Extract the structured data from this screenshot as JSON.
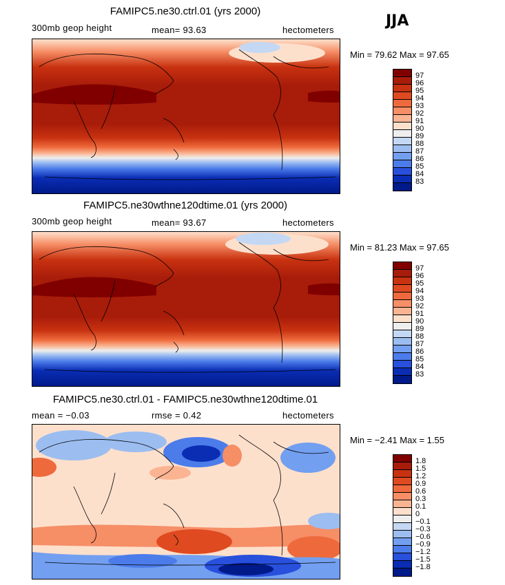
{
  "season": "JJA",
  "panels": [
    {
      "title": "FAMIPC5.ne30.ctrl.01 (yrs 2000)",
      "left": "300mb geop height",
      "center": "mean=   93.63",
      "units": "hectometers",
      "minmax": "Min =   79.62  Max =   97.65",
      "colorbar_labels": [
        "97",
        "96",
        "95",
        "94",
        "93",
        "92",
        "91",
        "90",
        "89",
        "88",
        "87",
        "86",
        "85",
        "84",
        "83"
      ]
    },
    {
      "title": "FAMIPC5.ne30wthne120dtime.01 (yrs 2000)",
      "left": "300mb geop height",
      "center": "mean=   93.67",
      "units": "hectometers",
      "minmax": "Min =   81.23  Max =   97.65",
      "colorbar_labels": [
        "97",
        "96",
        "95",
        "94",
        "93",
        "92",
        "91",
        "90",
        "89",
        "88",
        "87",
        "86",
        "85",
        "84",
        "83"
      ]
    },
    {
      "title": "FAMIPC5.ne30.ctrl.01 - FAMIPC5.ne30wthne120dtime.01",
      "left": "mean =   −0.03",
      "center": "rmse =    0.42",
      "units": "hectometers",
      "minmax": "Min =   −2.41  Max =    1.55",
      "colorbar_labels": [
        "1.8",
        "1.5",
        "1.2",
        "0.9",
        "0.6",
        "0.3",
        "0.1",
        "0",
        "−0.1",
        "−0.3",
        "−0.6",
        "−0.9",
        "−1.2",
        "−1.5",
        "−1.8"
      ]
    }
  ],
  "colors": {
    "scale": [
      "#800000",
      "#a81c0a",
      "#c83210",
      "#e04a20",
      "#ee6a3c",
      "#f68e66",
      "#fab492",
      "#fde0cc",
      "#eeeeee",
      "#c4d8f4",
      "#9cbdf0",
      "#739ff0",
      "#4c7cea",
      "#2850dc",
      "#0a2db4",
      "#001a8a"
    ]
  },
  "chart_data": [
    {
      "type": "heatmap",
      "title": "FAMIPC5.ne30.ctrl.01 (yrs 2000)",
      "variable": "300mb geop height",
      "units": "hectometers",
      "mean": 93.63,
      "min": 79.62,
      "max": 97.65,
      "contour_levels": [
        83,
        84,
        85,
        86,
        87,
        88,
        89,
        90,
        91,
        92,
        93,
        94,
        95,
        96,
        97
      ]
    },
    {
      "type": "heatmap",
      "title": "FAMIPC5.ne30wthne120dtime.01 (yrs 2000)",
      "variable": "300mb geop height",
      "units": "hectometers",
      "mean": 93.67,
      "min": 81.23,
      "max": 97.65,
      "contour_levels": [
        83,
        84,
        85,
        86,
        87,
        88,
        89,
        90,
        91,
        92,
        93,
        94,
        95,
        96,
        97
      ]
    },
    {
      "type": "heatmap",
      "title": "FAMIPC5.ne30.ctrl.01 - FAMIPC5.ne30wthne120dtime.01",
      "units": "hectometers",
      "mean": -0.03,
      "rmse": 0.42,
      "min": -2.41,
      "max": 1.55,
      "contour_levels": [
        -1.8,
        -1.5,
        -1.2,
        -0.9,
        -0.6,
        -0.3,
        -0.1,
        0,
        0.1,
        0.3,
        0.6,
        0.9,
        1.2,
        1.5,
        1.8
      ]
    }
  ]
}
